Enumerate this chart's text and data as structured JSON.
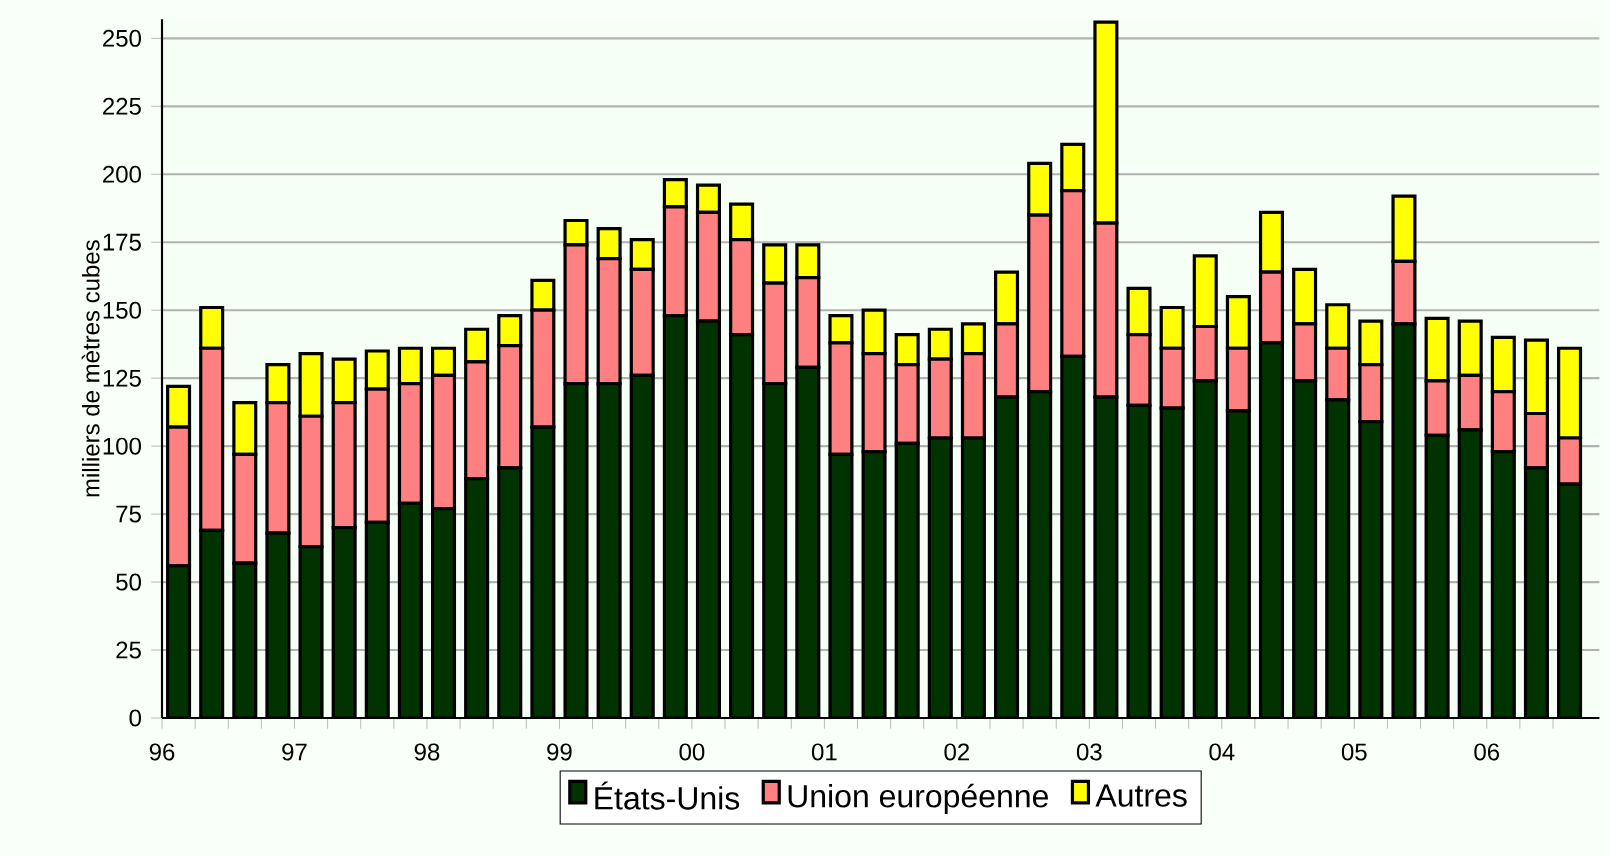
{
  "chart_data": {
    "type": "bar",
    "stacked": true,
    "ylabel": "milliers de mètres cubes",
    "categories": [
      "96",
      null,
      null,
      null,
      "97",
      null,
      null,
      null,
      "98",
      null,
      null,
      null,
      "99",
      null,
      null,
      null,
      "00",
      null,
      null,
      null,
      "01",
      null,
      null,
      null,
      "02",
      null,
      null,
      null,
      "03",
      null,
      null,
      null,
      "04",
      null,
      null,
      null,
      "05",
      null,
      null,
      null,
      "06",
      null,
      null
    ],
    "series": [
      {
        "name": "États-Unis",
        "color": "#003300",
        "values": [
          56,
          69,
          57,
          68,
          63,
          70,
          72,
          79,
          77,
          88,
          92,
          107,
          123,
          123,
          126,
          148,
          146,
          141,
          123,
          129,
          97,
          98,
          101,
          103,
          103,
          118,
          120,
          133,
          118,
          115,
          114,
          124,
          113,
          138,
          124,
          117,
          109,
          145,
          104,
          106,
          98,
          92,
          86
        ]
      },
      {
        "name": "Union européenne",
        "color": "#ff8080",
        "values": [
          51,
          67,
          40,
          48,
          48,
          46,
          49,
          44,
          49,
          43,
          45,
          43,
          51,
          46,
          39,
          40,
          40,
          35,
          37,
          33,
          41,
          36,
          29,
          29,
          31,
          27,
          65,
          61,
          64,
          26,
          22,
          20,
          23,
          26,
          21,
          19,
          21,
          23,
          20,
          20,
          22,
          20,
          17
        ]
      },
      {
        "name": "Autres",
        "color": "#ffff00",
        "values": [
          15,
          15,
          19,
          14,
          23,
          16,
          14,
          13,
          10,
          12,
          11,
          11,
          9,
          11,
          11,
          10,
          10,
          13,
          14,
          12,
          10,
          16,
          11,
          11,
          11,
          19,
          19,
          17,
          74,
          17,
          15,
          26,
          19,
          22,
          20,
          16,
          16,
          24,
          23,
          20,
          20,
          27,
          33
        ]
      }
    ],
    "ylim": [
      0,
      257
    ],
    "yticks": [
      0,
      25,
      50,
      75,
      100,
      125,
      150,
      175,
      200,
      225,
      250
    ],
    "grid": "y",
    "legend": "bottom"
  }
}
